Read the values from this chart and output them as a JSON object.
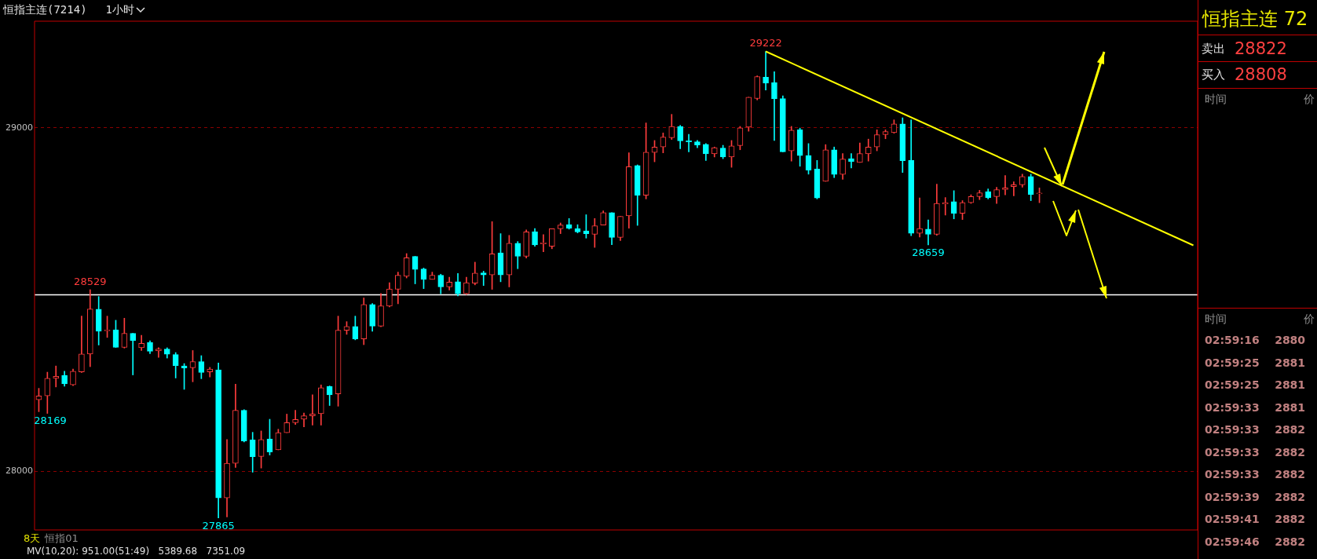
{
  "chart_data": [
    {
      "type": "candlestick",
      "title": "恒指主连(7214)",
      "subtitle": "1小时",
      "categories": [
        null,
        null,
        null,
        null,
        null,
        null,
        null,
        null,
        null,
        null,
        null,
        null,
        null,
        null,
        null,
        null,
        null,
        null,
        null,
        null,
        null,
        null,
        null,
        null,
        null,
        null,
        null,
        null,
        null,
        null,
        null,
        null,
        null,
        null,
        null,
        null,
        null,
        null,
        null,
        null,
        null,
        null,
        null,
        null,
        null,
        null,
        null,
        null,
        null,
        null,
        null,
        null,
        null,
        null,
        null,
        null,
        null,
        null,
        null,
        null,
        null,
        null,
        null,
        null,
        null,
        null,
        null,
        null,
        null,
        null,
        null,
        null,
        null,
        null,
        null,
        null,
        null,
        null,
        null,
        null,
        null,
        null,
        null,
        null,
        null,
        null,
        null,
        null,
        null,
        null,
        null,
        null,
        null,
        null,
        null,
        null,
        null,
        null,
        null,
        null,
        null,
        null,
        null,
        null,
        null,
        null,
        null,
        null,
        null,
        null,
        null,
        null,
        null,
        null,
        null,
        null,
        null,
        null,
        null,
        null,
        null,
        null,
        null,
        null,
        null,
        null,
        null,
        null,
        null,
        null,
        null,
        null,
        null,
        null,
        null,
        null
      ],
      "ohlc": [
        [
          28209,
          28242,
          28174,
          28220
        ],
        [
          28220,
          28289,
          28169,
          28271
        ],
        [
          28271,
          28307,
          28246,
          28277
        ],
        [
          28280,
          28292,
          28248,
          28255
        ],
        [
          28252,
          28298,
          28250,
          28292
        ],
        [
          28290,
          28452,
          28288,
          28342
        ],
        [
          28342,
          28529,
          28305,
          28473
        ],
        [
          28472,
          28509,
          28368,
          28408
        ],
        [
          28409,
          28452,
          28390,
          28412
        ],
        [
          28412,
          28440,
          28361,
          28361
        ],
        [
          28361,
          28446,
          28359,
          28402
        ],
        [
          28402,
          28402,
          28281,
          28381
        ],
        [
          28360,
          28396,
          28352,
          28373
        ],
        [
          28375,
          28380,
          28343,
          28350
        ],
        [
          28351,
          28360,
          28332,
          28356
        ],
        [
          28356,
          28360,
          28330,
          28341
        ],
        [
          28340,
          28346,
          28272,
          28308
        ],
        [
          28307,
          28314,
          28239,
          28301
        ],
        [
          28302,
          28352,
          28261,
          28320
        ],
        [
          28320,
          28337,
          28270,
          28288
        ],
        [
          28290,
          28303,
          28275,
          28298
        ],
        [
          28296,
          28316,
          27865,
          27923
        ],
        [
          27923,
          28093,
          27868,
          28024
        ],
        [
          28024,
          28254,
          28012,
          28178
        ],
        [
          28178,
          28180,
          28086,
          28089
        ],
        [
          28092,
          28114,
          27998,
          28043
        ],
        [
          28044,
          28118,
          28010,
          28093
        ],
        [
          28095,
          28152,
          28048,
          28057
        ],
        [
          28063,
          28123,
          28063,
          28113
        ],
        [
          28113,
          28167,
          28113,
          28142
        ],
        [
          28142,
          28178,
          28137,
          28151
        ],
        [
          28152,
          28170,
          28130,
          28162
        ],
        [
          28162,
          28223,
          28135,
          28167
        ],
        [
          28168,
          28252,
          28135,
          28244
        ],
        [
          28247,
          28249,
          28192,
          28223
        ],
        [
          28226,
          28452,
          28190,
          28411
        ],
        [
          28411,
          28436,
          28399,
          28422
        ],
        [
          28422,
          28452,
          28383,
          28386
        ],
        [
          28386,
          28505,
          28369,
          28486
        ],
        [
          28486,
          28489,
          28408,
          28423
        ],
        [
          28423,
          28518,
          28421,
          28482
        ],
        [
          28481,
          28549,
          28479,
          28531
        ],
        [
          28530,
          28580,
          28488,
          28571
        ],
        [
          28568,
          28634,
          28563,
          28622
        ],
        [
          28626,
          28626,
          28546,
          28588
        ],
        [
          28589,
          28592,
          28532,
          28559
        ],
        [
          28559,
          28580,
          28559,
          28571
        ],
        [
          28571,
          28574,
          28517,
          28537
        ],
        [
          28537,
          28565,
          28528,
          28551
        ],
        [
          28552,
          28576,
          28511,
          28517
        ],
        [
          28517,
          28565,
          28515,
          28549
        ],
        [
          28548,
          28609,
          28543,
          28577
        ],
        [
          28578,
          28583,
          28541,
          28572
        ],
        [
          28572,
          28727,
          28530,
          28633
        ],
        [
          28636,
          28692,
          28552,
          28572
        ],
        [
          28572,
          28687,
          28537,
          28664
        ],
        [
          28664,
          28669,
          28590,
          28626
        ],
        [
          28626,
          28703,
          28621,
          28697
        ],
        [
          28698,
          28707,
          28655,
          28659
        ],
        [
          28662,
          28689,
          28639,
          28666
        ],
        [
          28655,
          28706,
          28648,
          28706
        ],
        [
          28706,
          28723,
          28692,
          28717
        ],
        [
          28718,
          28736,
          28705,
          28708
        ],
        [
          28706,
          28718,
          28694,
          28697
        ],
        [
          28700,
          28747,
          28679,
          28692
        ],
        [
          28690,
          28736,
          28652,
          28715
        ],
        [
          28717,
          28758,
          28717,
          28753
        ],
        [
          28753,
          28753,
          28660,
          28681
        ],
        [
          28681,
          28742,
          28672,
          28742
        ],
        [
          28744,
          28927,
          28708,
          28887
        ],
        [
          28890,
          28892,
          28716,
          28804
        ],
        [
          28804,
          29014,
          28793,
          28929
        ],
        [
          28928,
          28963,
          28901,
          28944
        ],
        [
          28944,
          28985,
          28927,
          28973
        ],
        [
          28971,
          29039,
          28966,
          29004
        ],
        [
          29004,
          29007,
          28939,
          28962
        ],
        [
          28962,
          28981,
          28930,
          28959
        ],
        [
          28959,
          28963,
          28942,
          28950
        ],
        [
          28952,
          28954,
          28905,
          28924
        ],
        [
          28924,
          28944,
          28915,
          28942
        ],
        [
          28941,
          28949,
          28910,
          28915
        ],
        [
          28915,
          28963,
          28885,
          28947
        ],
        [
          28948,
          29004,
          28936,
          29000
        ],
        [
          29002,
          29089,
          28990,
          29089
        ],
        [
          29085,
          29151,
          29081,
          29149
        ],
        [
          29147,
          29222,
          29110,
          29130
        ],
        [
          29131,
          29163,
          28963,
          29084
        ],
        [
          29085,
          29093,
          28930,
          28930
        ],
        [
          28933,
          29004,
          28903,
          28993
        ],
        [
          28994,
          28999,
          28888,
          28919
        ],
        [
          28919,
          28954,
          28865,
          28877
        ],
        [
          28880,
          28905,
          28793,
          28796
        ],
        [
          28844,
          28951,
          28844,
          28936
        ],
        [
          28936,
          28944,
          28855,
          28864
        ],
        [
          28864,
          28925,
          28850,
          28909
        ],
        [
          28910,
          28925,
          28883,
          28902
        ],
        [
          28899,
          28956,
          28899,
          28925
        ],
        [
          28924,
          28967,
          28903,
          28944
        ],
        [
          28944,
          28994,
          28933,
          28980
        ],
        [
          28980,
          28994,
          28968,
          28989
        ],
        [
          28986,
          29023,
          28984,
          29011
        ],
        [
          29011,
          29029,
          28870,
          28904
        ],
        [
          28905,
          29023,
          28686,
          28693
        ],
        [
          28693,
          28796,
          28682,
          28707
        ],
        [
          28705,
          28732,
          28659,
          28690
        ],
        [
          28690,
          28836,
          28687,
          28780
        ],
        [
          28778,
          28797,
          28746,
          28782
        ],
        [
          28785,
          28817,
          28735,
          28751
        ],
        [
          28751,
          28788,
          28733,
          28782
        ],
        [
          28782,
          28805,
          28780,
          28800
        ],
        [
          28800,
          28818,
          28791,
          28811
        ],
        [
          28814,
          28822,
          28793,
          28797
        ],
        [
          28800,
          28827,
          28780,
          28820
        ],
        [
          28820,
          28861,
          28805,
          28825
        ],
        [
          28829,
          28843,
          28802,
          28834
        ],
        [
          28834,
          28865,
          28827,
          28858
        ],
        [
          28858,
          28865,
          28788,
          28806
        ],
        [
          28808,
          28825,
          28782,
          28808
        ],
        null,
        null,
        null,
        null,
        null,
        null,
        null,
        null,
        null,
        null,
        null,
        null,
        null,
        null,
        null,
        null,
        null,
        null
      ],
      "series": [
        {
          "type": "line",
          "color": "#ffff00",
          "values": [
            null,
            null,
            null,
            null,
            null,
            null,
            null,
            null,
            null,
            null,
            null,
            null,
            null,
            null,
            null,
            null,
            null,
            null,
            null,
            null,
            null,
            null,
            null,
            null,
            null,
            null,
            null,
            null,
            null,
            null,
            null,
            null,
            null,
            null,
            null,
            null,
            null,
            null,
            null,
            null,
            null,
            null,
            null,
            null,
            null,
            null,
            null,
            null,
            null,
            null,
            null,
            null,
            null,
            null,
            null,
            null,
            null,
            null,
            null,
            null,
            null,
            null,
            null,
            null,
            null,
            null,
            null,
            null,
            null,
            null,
            null,
            null,
            null,
            null,
            null,
            null,
            null,
            null,
            null,
            null,
            null,
            null,
            null,
            null,
            null,
            29222,
            null,
            null,
            null,
            null,
            null,
            null,
            null,
            null,
            null,
            null,
            null,
            null,
            null,
            null,
            null,
            null,
            null,
            null,
            null,
            null,
            null,
            null,
            null,
            null,
            null,
            null,
            null,
            null,
            null,
            null,
            null,
            null,
            null,
            null,
            null,
            null,
            null,
            null,
            null,
            null,
            null,
            null,
            null,
            null,
            null,
            null,
            null,
            null,
            null,
            28658
          ]
        }
      ],
      "ylim": [
        27830,
        29310
      ],
      "yticks": [
        28000,
        29000
      ],
      "grid": "y",
      "ref_lines": [
        {
          "axis": "y",
          "value": 28514,
          "color": "#ffffff"
        }
      ],
      "annotations": [
        {
          "text": "29222",
          "y": 29222
        },
        {
          "text": "28529",
          "y": 28529
        },
        {
          "text": "27865",
          "y": 27865
        },
        {
          "text": "28659",
          "y": 28659
        },
        {
          "text": "28169",
          "y": 28169
        },
        "8天",
        "恒指01",
        "MV(10,20): 951.00(51:49)   5389.68   7351.09"
      ]
    },
    {
      "type": "other",
      "title": "恒指主连 72",
      "annotations": [
        "卖出",
        "28822",
        "买入",
        "28808",
        "时间",
        "价",
        "时间",
        "价",
        "02:59:16    2880",
        "02:59:25    2881",
        "02:59:25    2881",
        "02:59:33    2881",
        "02:59:33    2882",
        "02:59:33    2882",
        "02:59:33    2882",
        "02:59:39    2882",
        "02:59:41    2882",
        "02:59:46    2882"
      ]
    }
  ]
}
